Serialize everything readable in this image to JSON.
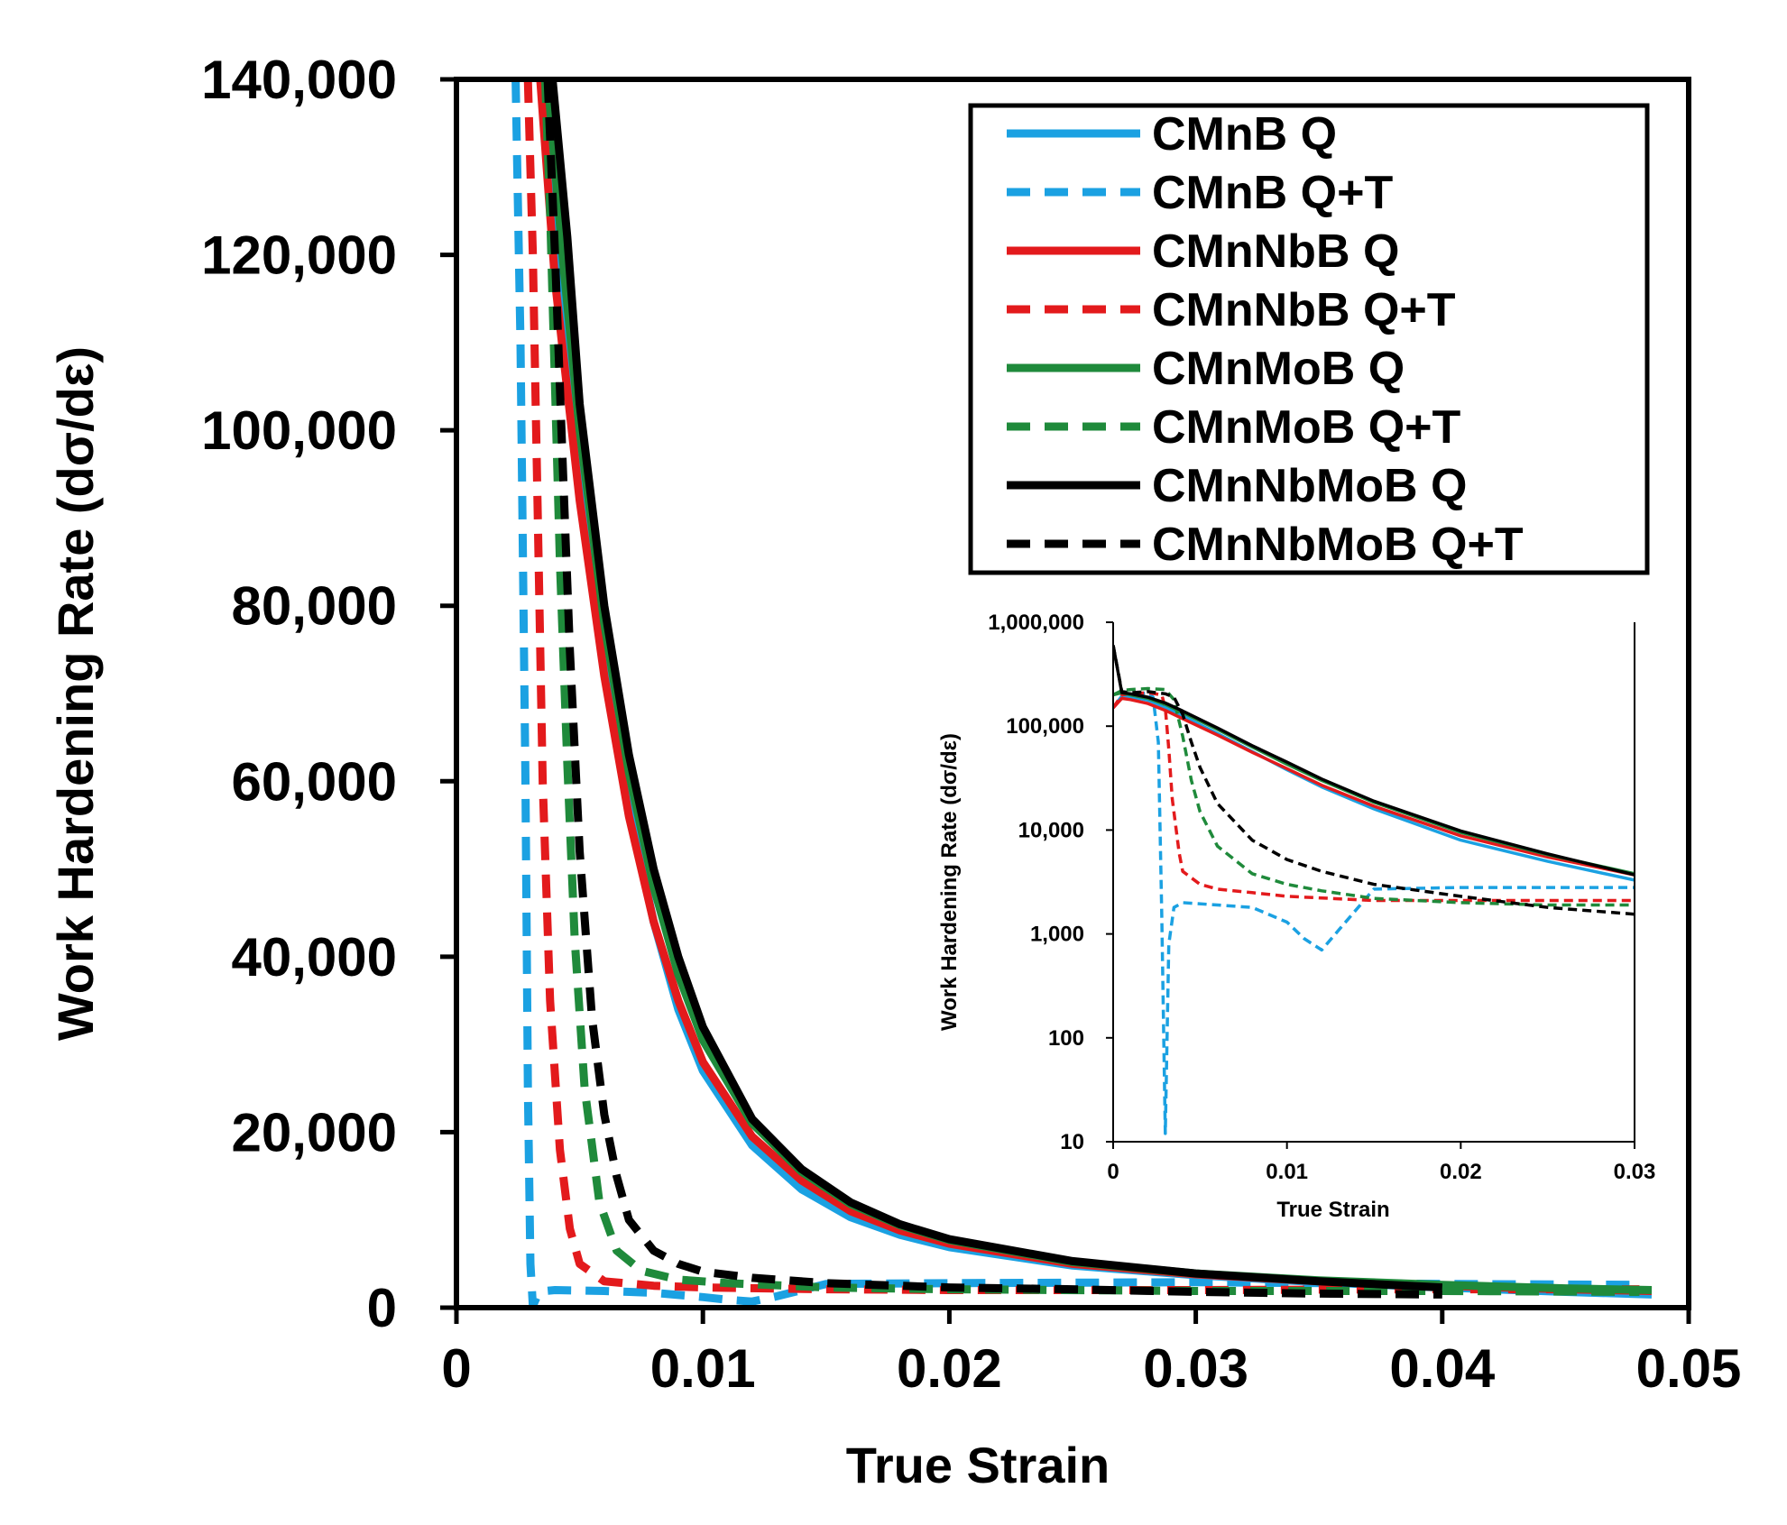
{
  "chart_data": [
    {
      "type": "line",
      "title": "",
      "xlabel": "True Strain",
      "ylabel": "Work Hardening Rate (dσ/dε)",
      "xlim": [
        0,
        0.05
      ],
      "ylim": [
        0,
        140000
      ],
      "x_ticks": [
        "0",
        "0.01",
        "0.02",
        "0.03",
        "0.04",
        "0.05"
      ],
      "y_ticks": [
        "0",
        "20,000",
        "40,000",
        "60,000",
        "80,000",
        "100,000",
        "120,000",
        "140,000"
      ],
      "grid": false,
      "legend_position": "top-right",
      "legend": [
        "CMnB Q",
        "CMnB Q+T",
        "CMnNbB Q",
        "CMnNbB Q+T",
        "CMnMoB Q",
        "CMnMoB Q+T",
        "CMnNbMoB Q",
        "CMnNbMoB Q+T"
      ],
      "series": [
        {
          "name": "CMnB Q",
          "color": "#1ba1e2",
          "dash": "solid",
          "x": [
            0.0036,
            0.0042,
            0.005,
            0.006,
            0.007,
            0.008,
            0.009,
            0.01,
            0.012,
            0.014,
            0.016,
            0.018,
            0.02,
            0.025,
            0.03,
            0.035,
            0.04,
            0.045,
            0.0485
          ],
          "y": [
            140000,
            120000,
            98000,
            75000,
            57000,
            44000,
            34000,
            27000,
            18500,
            13500,
            10300,
            8300,
            6900,
            4800,
            3700,
            2900,
            2300,
            1800,
            1500
          ]
        },
        {
          "name": "CMnB Q+T",
          "color": "#1ba1e2",
          "dash": "dashed",
          "x": [
            0.0024,
            0.0026,
            0.0028,
            0.0029,
            0.003,
            0.0031,
            0.0033,
            0.0036,
            0.004,
            0.006,
            0.008,
            0.01,
            0.011,
            0.012,
            0.013,
            0.015,
            0.02,
            0.03,
            0.04,
            0.048
          ],
          "y": [
            140000,
            110000,
            60000,
            25000,
            5000,
            200,
            1500,
            1900,
            2000,
            1900,
            1700,
            1200,
            900,
            700,
            1300,
            2700,
            2800,
            2900,
            2700,
            2600
          ]
        },
        {
          "name": "CMnNbB Q",
          "color": "#e31a1c",
          "dash": "solid",
          "x": [
            0.0034,
            0.004,
            0.005,
            0.006,
            0.007,
            0.008,
            0.009,
            0.01,
            0.012,
            0.014,
            0.016,
            0.018,
            0.02,
            0.025,
            0.03,
            0.035,
            0.04,
            0.045,
            0.0485
          ],
          "y": [
            140000,
            117000,
            92000,
            72000,
            56000,
            44000,
            35000,
            28000,
            19500,
            14500,
            11000,
            8800,
            7300,
            5000,
            3800,
            3000,
            2500,
            2100,
            1900
          ]
        },
        {
          "name": "CMnNbB Q+T",
          "color": "#e31a1c",
          "dash": "dashed",
          "x": [
            0.0029,
            0.0031,
            0.0033,
            0.0035,
            0.0038,
            0.0042,
            0.0046,
            0.005,
            0.006,
            0.008,
            0.01,
            0.015,
            0.02,
            0.03,
            0.04,
            0.048
          ],
          "y": [
            140000,
            120000,
            90000,
            60000,
            35000,
            18000,
            9000,
            5000,
            3000,
            2500,
            2300,
            2100,
            2000,
            2000,
            2100,
            2100
          ]
        },
        {
          "name": "CMnMoB Q",
          "color": "#1f8a3b",
          "dash": "solid",
          "x": [
            0.0037,
            0.0043,
            0.005,
            0.006,
            0.007,
            0.008,
            0.009,
            0.01,
            0.012,
            0.014,
            0.016,
            0.018,
            0.02,
            0.025,
            0.03,
            0.035,
            0.04,
            0.045,
            0.0485
          ],
          "y": [
            140000,
            120000,
            100000,
            78000,
            61000,
            48000,
            38000,
            30500,
            21000,
            15500,
            11800,
            9400,
            7700,
            5200,
            3900,
            3100,
            2600,
            2200,
            2000
          ]
        },
        {
          "name": "CMnMoB Q+T",
          "color": "#1f8a3b",
          "dash": "dashed",
          "x": [
            0.0036,
            0.0038,
            0.004,
            0.0042,
            0.0045,
            0.0048,
            0.0052,
            0.0058,
            0.0065,
            0.0075,
            0.009,
            0.011,
            0.015,
            0.02,
            0.03,
            0.04,
            0.048
          ],
          "y": [
            140000,
            125000,
            105000,
            85000,
            62000,
            42000,
            25000,
            12000,
            6500,
            4200,
            3200,
            2800,
            2300,
            2100,
            1900,
            1900,
            1800
          ]
        },
        {
          "name": "CMnNbMoB Q",
          "color": "#000000",
          "dash": "solid",
          "x": [
            0.0039,
            0.0045,
            0.005,
            0.006,
            0.007,
            0.008,
            0.009,
            0.01,
            0.012,
            0.014,
            0.016,
            0.018,
            0.02,
            0.025,
            0.03,
            0.035,
            0.04
          ],
          "y": [
            140000,
            122000,
            103000,
            80000,
            63000,
            50000,
            40000,
            32000,
            21500,
            15800,
            12000,
            9500,
            7800,
            5300,
            3900,
            3000,
            2300
          ]
        },
        {
          "name": "CMnNbMoB Q+T",
          "color": "#000000",
          "dash": "dashed",
          "x": [
            0.0037,
            0.004,
            0.0043,
            0.0046,
            0.005,
            0.0055,
            0.006,
            0.0065,
            0.007,
            0.008,
            0.009,
            0.01,
            0.012,
            0.015,
            0.02,
            0.025,
            0.03,
            0.035,
            0.04
          ],
          "y": [
            140000,
            120000,
            97000,
            75000,
            52000,
            33000,
            22000,
            15000,
            10000,
            6500,
            5000,
            4100,
            3400,
            2800,
            2300,
            2100,
            1800,
            1600,
            1500
          ]
        }
      ]
    },
    {
      "type": "line",
      "title": "",
      "xlabel": "True Strain",
      "ylabel": "Work Hardening Rate (dσ/dε)",
      "xlim": [
        0,
        0.03
      ],
      "ylim": [
        10,
        1000000
      ],
      "yscale": "log",
      "x_ticks": [
        "0",
        "0.01",
        "0.02",
        "0.03"
      ],
      "y_ticks": [
        "10",
        "100",
        "1,000",
        "10,000",
        "100,000",
        "1,000,000"
      ],
      "grid": false,
      "series": [
        {
          "color": "#1ba1e2",
          "dash": "solid",
          "x": [
            0,
            0.0005,
            0.001,
            0.002,
            0.003,
            0.004,
            0.006,
            0.008,
            0.01,
            0.012,
            0.015,
            0.02,
            0.025,
            0.03
          ],
          "y": [
            150000,
            195000,
            192000,
            178000,
            152000,
            125000,
            85000,
            57000,
            38000,
            26000,
            16000,
            8000,
            5000,
            3300
          ]
        },
        {
          "color": "#1ba1e2",
          "dash": "dashed",
          "x": [
            0,
            0.0005,
            0.001,
            0.0015,
            0.002,
            0.0023,
            0.0026,
            0.0028,
            0.003,
            0.0032,
            0.0035,
            0.004,
            0.006,
            0.008,
            0.01,
            0.011,
            0.012,
            0.013,
            0.015,
            0.02,
            0.025,
            0.03
          ],
          "y": [
            150000,
            195000,
            200000,
            205000,
            210000,
            190000,
            70000,
            1500,
            12,
            800,
            1800,
            2000,
            1900,
            1800,
            1300,
            900,
            700,
            1100,
            2700,
            2800,
            2800,
            2800
          ]
        },
        {
          "color": "#e31a1c",
          "dash": "solid",
          "x": [
            0,
            0.0005,
            0.001,
            0.002,
            0.003,
            0.004,
            0.006,
            0.008,
            0.01,
            0.012,
            0.015,
            0.02,
            0.025,
            0.03
          ],
          "y": [
            150000,
            185000,
            180000,
            165000,
            142000,
            118000,
            82000,
            56000,
            39000,
            27000,
            17000,
            8800,
            5500,
            3700
          ]
        },
        {
          "color": "#e31a1c",
          "dash": "dashed",
          "x": [
            0,
            0.0005,
            0.001,
            0.002,
            0.0028,
            0.003,
            0.0032,
            0.0034,
            0.0038,
            0.004,
            0.005,
            0.006,
            0.008,
            0.01,
            0.015,
            0.02,
            0.025,
            0.03
          ],
          "y": [
            150000,
            200000,
            205000,
            210000,
            200000,
            150000,
            60000,
            20000,
            6000,
            4000,
            3000,
            2700,
            2500,
            2300,
            2100,
            2100,
            2100,
            2100
          ]
        },
        {
          "color": "#1f8a3b",
          "dash": "solid",
          "x": [
            0,
            0.0005,
            0.001,
            0.002,
            0.003,
            0.004,
            0.006,
            0.008,
            0.01,
            0.012,
            0.015,
            0.02,
            0.025,
            0.03
          ],
          "y": [
            200000,
            210000,
            200000,
            185000,
            162000,
            135000,
            93000,
            63000,
            43000,
            30000,
            18500,
            9500,
            5800,
            3800
          ]
        },
        {
          "color": "#1f8a3b",
          "dash": "dashed",
          "x": [
            0,
            0.0005,
            0.001,
            0.002,
            0.003,
            0.0035,
            0.004,
            0.0045,
            0.005,
            0.006,
            0.008,
            0.01,
            0.012,
            0.015,
            0.02,
            0.025,
            0.03
          ],
          "y": [
            200000,
            220000,
            225000,
            230000,
            225000,
            180000,
            80000,
            30000,
            15000,
            7000,
            3800,
            3000,
            2600,
            2200,
            2000,
            1900,
            1900
          ]
        },
        {
          "color": "#000000",
          "dash": "solid",
          "x": [
            0,
            0.0005,
            0.001,
            0.002,
            0.003,
            0.004,
            0.006,
            0.008,
            0.01,
            0.012,
            0.015,
            0.02,
            0.025,
            0.03
          ],
          "y": [
            600000,
            210000,
            205000,
            190000,
            167000,
            140000,
            96000,
            65000,
            45000,
            31000,
            19000,
            9800,
            5900,
            3700
          ]
        },
        {
          "color": "#000000",
          "dash": "dashed",
          "x": [
            0,
            0.0005,
            0.001,
            0.002,
            0.003,
            0.0035,
            0.004,
            0.0045,
            0.005,
            0.006,
            0.008,
            0.01,
            0.012,
            0.015,
            0.02,
            0.025,
            0.03
          ],
          "y": [
            600000,
            215000,
            210000,
            215000,
            205000,
            190000,
            130000,
            70000,
            40000,
            18000,
            8000,
            5200,
            4000,
            3000,
            2300,
            1800,
            1550
          ]
        }
      ]
    }
  ]
}
